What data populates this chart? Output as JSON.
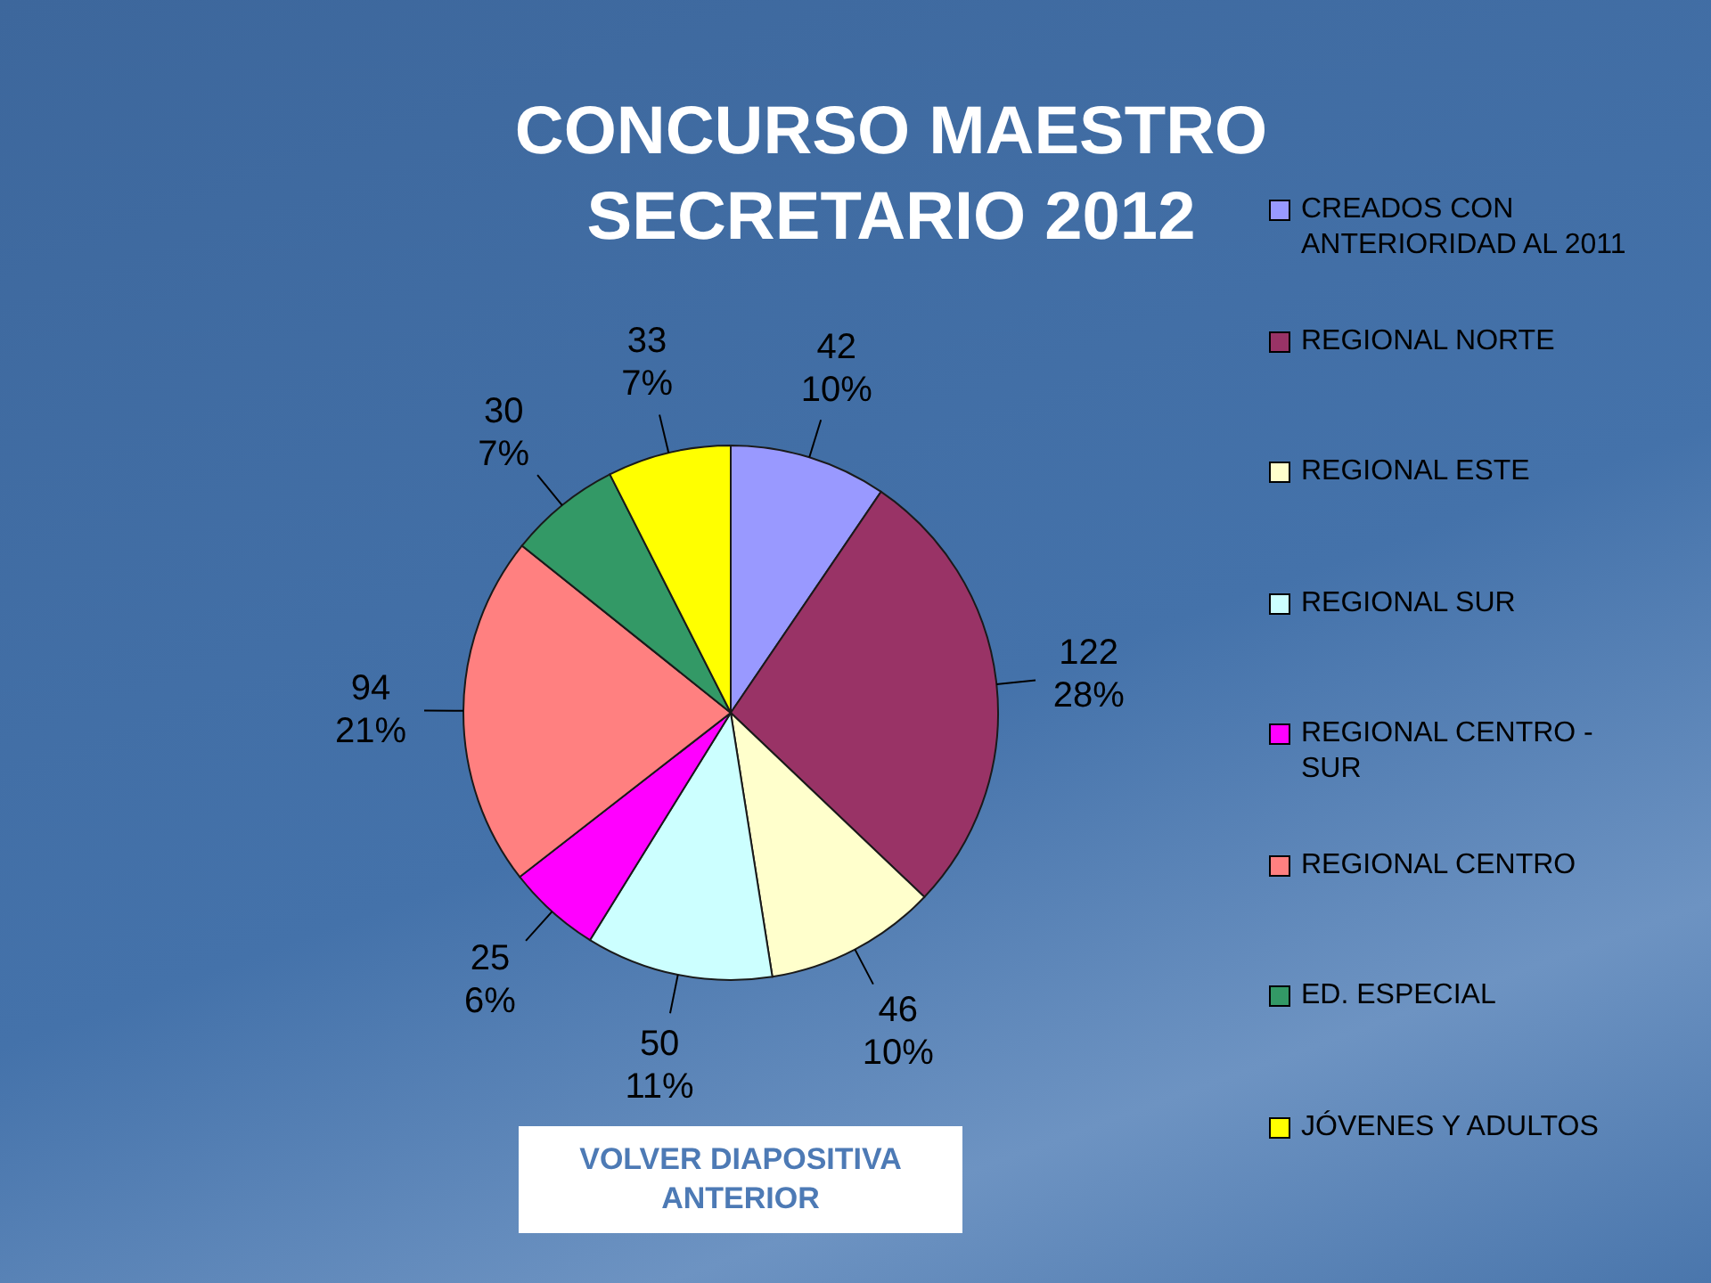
{
  "chart_data": {
    "type": "pie",
    "title": "CONCURSO MAESTRO SECRETARIO 2012",
    "categories": [
      "CREADOS CON ANTERIORIDAD AL 2011",
      "REGIONAL NORTE",
      "REGIONAL ESTE",
      "REGIONAL SUR",
      "REGIONAL CENTRO - SUR",
      "REGIONAL CENTRO",
      "ED. ESPECIAL",
      "JÓVENES Y ADULTOS"
    ],
    "values": [
      42,
      122,
      46,
      50,
      25,
      94,
      30,
      33
    ],
    "colors": [
      "#9999ff",
      "#993366",
      "#ffffcc",
      "#ccffff",
      "#ff00ff",
      "#ff8080",
      "#339966",
      "#ffff00"
    ],
    "value_labels": [
      "42\n10%",
      "122\n28%",
      "46\n10%",
      "50\n11%",
      "25\n6%",
      "94\n21%",
      "30\n7%",
      "33\n7%"
    ],
    "legend": "right",
    "annotations": [
      "VOLVER DIAPOSITIVA ANTERIOR"
    ]
  }
}
